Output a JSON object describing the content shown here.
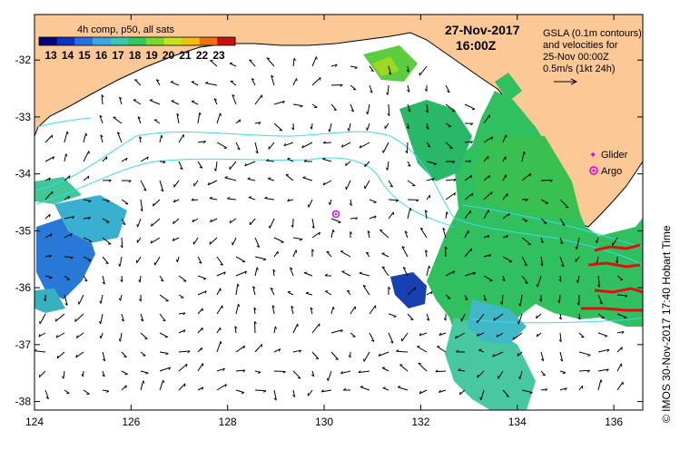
{
  "colorbar": {
    "title": "4h comp, p50, all sats",
    "ticks": [
      "13",
      "14",
      "15",
      "16",
      "17",
      "18",
      "19",
      "20",
      "21",
      "22",
      "23"
    ],
    "colors": [
      "#08007a",
      "#1030c8",
      "#2a6ee6",
      "#3aa6e6",
      "#38c8b0",
      "#30c860",
      "#78d830",
      "#c8e020",
      "#f0c010",
      "#f07010",
      "#c81010"
    ]
  },
  "header": {
    "date": "27-Nov-2017",
    "time": "16:00Z"
  },
  "info": {
    "line1": "GSLA (0.1m contours)",
    "line2": "and velocities for",
    "line3": "25-Nov 00:00Z",
    "line4": "0.5m/s (1kt 24h)"
  },
  "legend": {
    "glider": "Glider",
    "argo": "Argo",
    "glider_color": "#e000e0",
    "argo_color": "#e000e0"
  },
  "axes": {
    "x_ticks": [
      "124",
      "126",
      "128",
      "130",
      "132",
      "134",
      "136"
    ],
    "y_ticks": [
      "-32",
      "-33",
      "-34",
      "-35",
      "-36",
      "-37",
      "-38"
    ]
  },
  "credit": "© IMOS 30-Nov-2017 17:40 Hobart Time",
  "colors": {
    "land": "#fcc896",
    "ocean": "#ffffff",
    "contour": "#40d8e8",
    "glider_track": "#e01010"
  }
}
